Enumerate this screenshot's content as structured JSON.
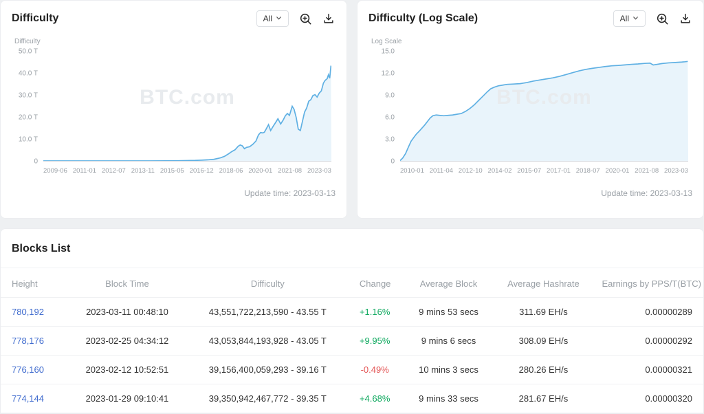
{
  "colors": {
    "positive": "#0fa95f",
    "negative": "#e35252",
    "link": "#3f6bce"
  },
  "charts_ui": [
    {
      "title": "Difficulty",
      "range_label": "All",
      "dropdown_icon": "chevron-down",
      "zoom_icon": "magnifier-plus",
      "download_icon": "arrow-down-tray",
      "update_time": "Update time: 2023-03-13"
    },
    {
      "title": "Difficulty (Log Scale)",
      "range_label": "All",
      "dropdown_icon": "chevron-down",
      "zoom_icon": "magnifier-plus",
      "download_icon": "arrow-down-tray",
      "update_time": "Update time: 2023-03-13"
    }
  ],
  "chart_data": [
    {
      "type": "area",
      "title": "Difficulty",
      "ylabel": "Difficulty",
      "watermark": "BTC.com",
      "stroke": "#5fb0e3",
      "fill": "#e9f4fb",
      "ylim": [
        0,
        50
      ],
      "yticks": [
        {
          "v": 50,
          "label": "50.0 T"
        },
        {
          "v": 40,
          "label": "40.0 T"
        },
        {
          "v": 30,
          "label": "30.0 T"
        },
        {
          "v": 20,
          "label": "20.0 T"
        },
        {
          "v": 10,
          "label": "10.0 T"
        },
        {
          "v": 0,
          "label": "0"
        }
      ],
      "xticks": [
        "2009-06",
        "2011-01",
        "2012-07",
        "2013-11",
        "2015-05",
        "2016-12",
        "2018-06",
        "2020-01",
        "2021-08",
        "2023-03"
      ],
      "xrange": [
        2009.45,
        2023.2
      ],
      "points": [
        [
          2009.45,
          0.0
        ],
        [
          2010.5,
          0.0
        ],
        [
          2011.5,
          0.0
        ],
        [
          2012.5,
          0.0
        ],
        [
          2013.5,
          0.01
        ],
        [
          2014.5,
          0.03
        ],
        [
          2015.3,
          0.05
        ],
        [
          2015.9,
          0.08
        ],
        [
          2016.3,
          0.15
        ],
        [
          2016.7,
          0.22
        ],
        [
          2017.0,
          0.35
        ],
        [
          2017.3,
          0.5
        ],
        [
          2017.6,
          0.75
        ],
        [
          2017.9,
          1.4
        ],
        [
          2018.1,
          2.1
        ],
        [
          2018.3,
          3.3
        ],
        [
          2018.45,
          4.3
        ],
        [
          2018.6,
          5.1
        ],
        [
          2018.75,
          6.7
        ],
        [
          2018.85,
          7.3
        ],
        [
          2018.95,
          6.9
        ],
        [
          2019.05,
          5.6
        ],
        [
          2019.15,
          6.2
        ],
        [
          2019.3,
          6.5
        ],
        [
          2019.45,
          7.6
        ],
        [
          2019.6,
          9.1
        ],
        [
          2019.72,
          11.9
        ],
        [
          2019.82,
          13.0
        ],
        [
          2019.92,
          12.8
        ],
        [
          2020.0,
          13.1
        ],
        [
          2020.1,
          14.8
        ],
        [
          2020.2,
          16.6
        ],
        [
          2020.3,
          13.9
        ],
        [
          2020.42,
          15.8
        ],
        [
          2020.52,
          17.3
        ],
        [
          2020.65,
          19.3
        ],
        [
          2020.78,
          16.9
        ],
        [
          2020.9,
          18.7
        ],
        [
          2021.0,
          20.6
        ],
        [
          2021.1,
          21.7
        ],
        [
          2021.2,
          20.8
        ],
        [
          2021.33,
          25.0
        ],
        [
          2021.42,
          23.6
        ],
        [
          2021.52,
          19.9
        ],
        [
          2021.62,
          14.5
        ],
        [
          2021.72,
          13.9
        ],
        [
          2021.82,
          18.1
        ],
        [
          2021.92,
          22.3
        ],
        [
          2022.02,
          24.2
        ],
        [
          2022.12,
          27.3
        ],
        [
          2022.22,
          28.0
        ],
        [
          2022.32,
          29.9
        ],
        [
          2022.42,
          30.3
        ],
        [
          2022.52,
          29.2
        ],
        [
          2022.62,
          31.0
        ],
        [
          2022.72,
          32.0
        ],
        [
          2022.82,
          35.6
        ],
        [
          2022.9,
          36.8
        ],
        [
          2023.0,
          37.6
        ],
        [
          2023.06,
          39.4
        ],
        [
          2023.12,
          37.8
        ],
        [
          2023.18,
          43.55
        ]
      ]
    },
    {
      "type": "area",
      "title": "Difficulty (Log Scale)",
      "ylabel": "Log Scale",
      "watermark": "BTC.com",
      "stroke": "#5fb0e3",
      "fill": "#e9f4fb",
      "ylim": [
        0,
        15
      ],
      "yticks": [
        {
          "v": 15,
          "label": "15.0"
        },
        {
          "v": 12,
          "label": "12.0"
        },
        {
          "v": 9,
          "label": "9.0"
        },
        {
          "v": 6,
          "label": "6.0"
        },
        {
          "v": 3,
          "label": "3.0"
        },
        {
          "v": 0,
          "label": "0"
        }
      ],
      "xticks": [
        "2010-01",
        "2011-04",
        "2012-10",
        "2014-02",
        "2015-07",
        "2017-01",
        "2018-07",
        "2020-01",
        "2021-08",
        "2023-03"
      ],
      "xrange": [
        2010.0,
        2023.2
      ],
      "points": [
        [
          2010.0,
          0.05
        ],
        [
          2010.12,
          0.4
        ],
        [
          2010.25,
          1.0
        ],
        [
          2010.38,
          1.9
        ],
        [
          2010.5,
          2.7
        ],
        [
          2010.62,
          3.2
        ],
        [
          2010.75,
          3.7
        ],
        [
          2010.88,
          4.1
        ],
        [
          2011.0,
          4.5
        ],
        [
          2011.12,
          4.9
        ],
        [
          2011.25,
          5.4
        ],
        [
          2011.38,
          5.9
        ],
        [
          2011.5,
          6.2
        ],
        [
          2011.65,
          6.3
        ],
        [
          2011.8,
          6.25
        ],
        [
          2012.0,
          6.2
        ],
        [
          2012.2,
          6.25
        ],
        [
          2012.4,
          6.3
        ],
        [
          2012.6,
          6.4
        ],
        [
          2012.8,
          6.5
        ],
        [
          2013.0,
          6.8
        ],
        [
          2013.2,
          7.2
        ],
        [
          2013.4,
          7.7
        ],
        [
          2013.6,
          8.3
        ],
        [
          2013.8,
          8.9
        ],
        [
          2014.0,
          9.5
        ],
        [
          2014.15,
          9.9
        ],
        [
          2014.3,
          10.1
        ],
        [
          2014.5,
          10.3
        ],
        [
          2014.7,
          10.4
        ],
        [
          2014.9,
          10.5
        ],
        [
          2015.2,
          10.55
        ],
        [
          2015.5,
          10.6
        ],
        [
          2015.8,
          10.75
        ],
        [
          2016.1,
          10.95
        ],
        [
          2016.4,
          11.1
        ],
        [
          2016.7,
          11.25
        ],
        [
          2017.0,
          11.4
        ],
        [
          2017.3,
          11.6
        ],
        [
          2017.6,
          11.85
        ],
        [
          2017.9,
          12.1
        ],
        [
          2018.2,
          12.35
        ],
        [
          2018.5,
          12.55
        ],
        [
          2018.8,
          12.7
        ],
        [
          2019.1,
          12.82
        ],
        [
          2019.4,
          12.95
        ],
        [
          2019.7,
          13.05
        ],
        [
          2020.0,
          13.1
        ],
        [
          2020.3,
          13.17
        ],
        [
          2020.6,
          13.25
        ],
        [
          2020.9,
          13.3
        ],
        [
          2021.2,
          13.38
        ],
        [
          2021.45,
          13.42
        ],
        [
          2021.6,
          13.16
        ],
        [
          2021.8,
          13.26
        ],
        [
          2022.0,
          13.36
        ],
        [
          2022.3,
          13.45
        ],
        [
          2022.6,
          13.5
        ],
        [
          2022.9,
          13.56
        ],
        [
          2023.05,
          13.6
        ],
        [
          2023.18,
          13.65
        ]
      ]
    }
  ],
  "blocks": {
    "title": "Blocks List",
    "columns": [
      "Height",
      "Block Time",
      "Difficulty",
      "Change",
      "Average Block",
      "Average Hashrate",
      "Earnings by PPS/T(BTC)"
    ],
    "rows": [
      {
        "height": "780,192",
        "block_time": "2023-03-11 00:48:10",
        "difficulty": "43,551,722,213,590 - 43.55 T",
        "change": "+1.16%",
        "avg_block": "9 mins 53 secs",
        "avg_hashrate": "311.69 EH/s",
        "earnings": "0.00000289"
      },
      {
        "height": "778,176",
        "block_time": "2023-02-25 04:34:12",
        "difficulty": "43,053,844,193,928 - 43.05 T",
        "change": "+9.95%",
        "avg_block": "9 mins 6 secs",
        "avg_hashrate": "308.09 EH/s",
        "earnings": "0.00000292"
      },
      {
        "height": "776,160",
        "block_time": "2023-02-12 10:52:51",
        "difficulty": "39,156,400,059,293 - 39.16 T",
        "change": "-0.49%",
        "avg_block": "10 mins 3 secs",
        "avg_hashrate": "280.26 EH/s",
        "earnings": "0.00000321"
      },
      {
        "height": "774,144",
        "block_time": "2023-01-29 09:10:41",
        "difficulty": "39,350,942,467,772 - 39.35 T",
        "change": "+4.68%",
        "avg_block": "9 mins 33 secs",
        "avg_hashrate": "281.67 EH/s",
        "earnings": "0.00000320"
      }
    ]
  }
}
